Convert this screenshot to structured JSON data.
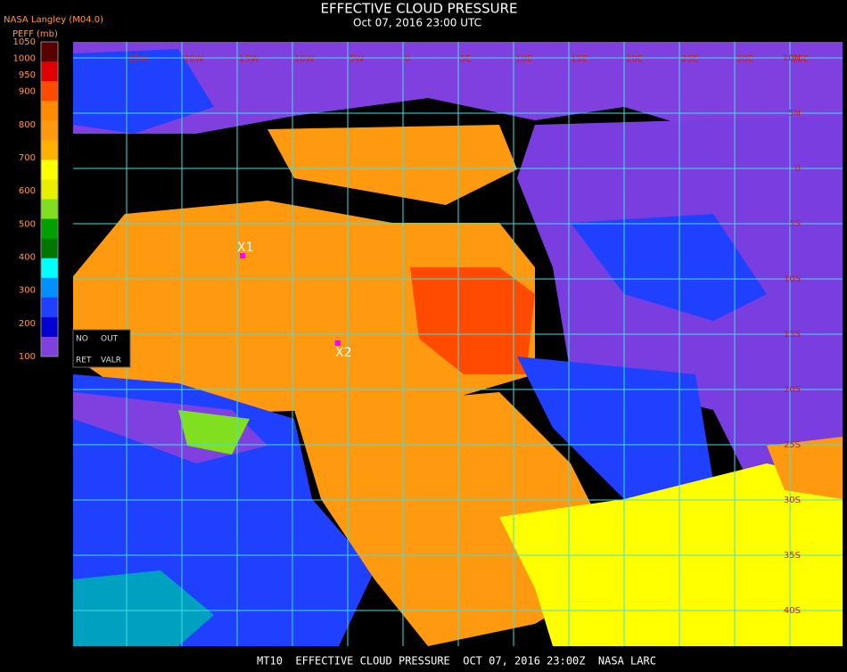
{
  "header": {
    "title": "EFFECTIVE CLOUD PRESSURE",
    "subtitle": "Oct 07, 2016 23:00 UTC",
    "source": "NASA Langley (M04.0)"
  },
  "legend": {
    "title": "PEFF (mb)",
    "ticks": [
      1050,
      1000,
      950,
      900,
      800,
      700,
      600,
      500,
      400,
      300,
      200,
      100
    ],
    "colors": [
      "#5a0000",
      "#e00000",
      "#ff4a00",
      "#ff8c00",
      "#ff9a10",
      "#ffb000",
      "#ffff00",
      "#e8f000",
      "#80e020",
      "#00a000",
      "#007800",
      "#00ffff",
      "#0090ff",
      "#2040ff",
      "#0000d0",
      "#8040e0"
    ],
    "flags": [
      "NO",
      "OUT",
      "RET",
      "VALR"
    ]
  },
  "grid": {
    "lon_labels": [
      "25W",
      "20W",
      "15W",
      "10W",
      "5W",
      "0",
      "5E",
      "10E",
      "15E",
      "20E",
      "25E",
      "30E",
      "35E"
    ],
    "lat_labels": [
      "10N",
      "5N",
      "0",
      "5S",
      "10S",
      "15S",
      "20S",
      "25S",
      "30S",
      "35S",
      "40S"
    ]
  },
  "markers": [
    "X1",
    "X2"
  ],
  "footer": "MT10  EFFECTIVE CLOUD PRESSURE  OCT 07, 2016 23:00Z  NASA LARC"
}
